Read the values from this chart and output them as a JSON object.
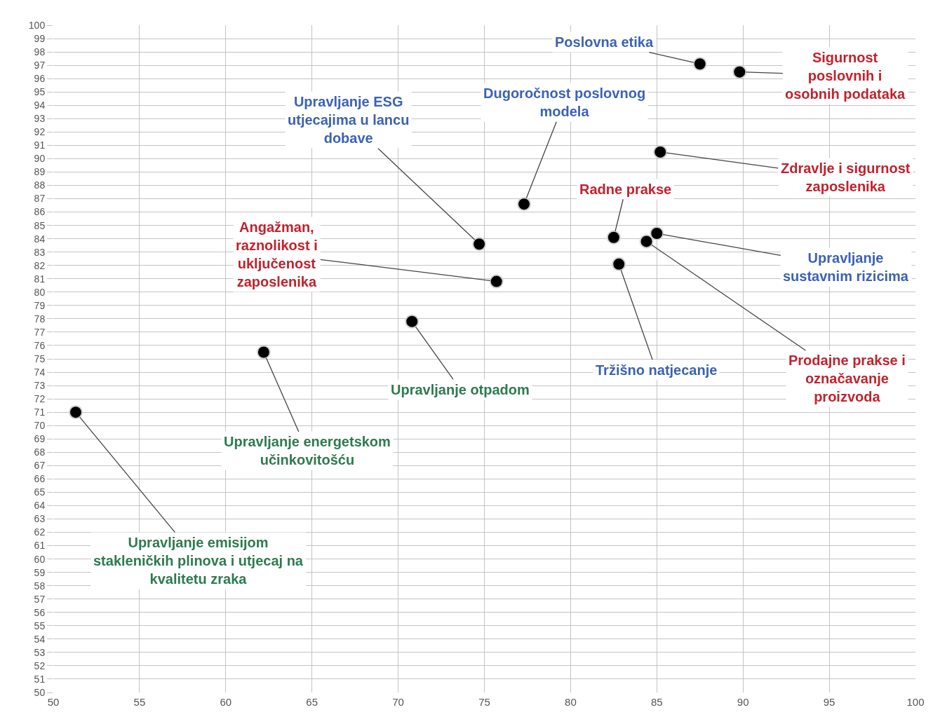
{
  "chart_data": {
    "type": "scatter",
    "marker": "circle",
    "grid": true,
    "xlim": [
      50,
      100
    ],
    "xticks": [
      50,
      55,
      60,
      65,
      70,
      75,
      80,
      85,
      90,
      95,
      100
    ],
    "ylim": [
      50,
      100
    ],
    "yticks": [
      50,
      51,
      52,
      53,
      54,
      55,
      56,
      57,
      58,
      59,
      60,
      61,
      62,
      63,
      64,
      65,
      66,
      67,
      68,
      69,
      70,
      71,
      72,
      73,
      74,
      75,
      76,
      77,
      78,
      79,
      80,
      81,
      82,
      83,
      84,
      85,
      86,
      87,
      88,
      89,
      90,
      91,
      92,
      93,
      94,
      95,
      96,
      97,
      98,
      99,
      100
    ],
    "series": [
      {
        "color": "#000000",
        "x": [
          87.5,
          89.8,
          85.2,
          77.3,
          74.7,
          82.5,
          75.7,
          85.0,
          82.8,
          84.4,
          70.8,
          62.2,
          51.3
        ],
        "values": [
          97.1,
          96.5,
          90.5,
          86.6,
          83.6,
          84.1,
          80.8,
          84.4,
          82.1,
          83.8,
          77.8,
          75.5,
          71.0
        ]
      }
    ],
    "annotations": [
      {
        "text": "Poslovna etika",
        "x": 87.5,
        "y": 97.1
      },
      {
        "text": "Sigurnost\nposlovnih i\nosobnih podataka",
        "x": 89.8,
        "y": 96.5
      },
      {
        "text": "Zdravlje i sigurnost\nzaposlenika",
        "x": 85.2,
        "y": 90.5
      },
      {
        "text": "Dugoročnost poslovnog\nmodela",
        "x": 77.3,
        "y": 86.6
      },
      {
        "text": "Upravljanje ESG\nutjecajima u lancu\ndobave",
        "x": 74.7,
        "y": 83.6
      },
      {
        "text": "Radne prakse",
        "x": 82.5,
        "y": 84.1
      },
      {
        "text": "Angažman,\nraznolikost i\nuključenost\nzaposlenika",
        "x": 75.7,
        "y": 80.8
      },
      {
        "text": "Upravljanje\nsustavnim rizicima",
        "x": 85.0,
        "y": 84.4
      },
      {
        "text": "Tržišno natjecanje",
        "x": 82.8,
        "y": 82.1
      },
      {
        "text": "Prodajne prakse i\noznačavanje\nproizvoda",
        "x": 84.4,
        "y": 83.8
      },
      {
        "text": "Upravljanje otpadom",
        "x": 70.8,
        "y": 77.8
      },
      {
        "text": "Upravljanje energetskom\nučinkovitošću",
        "x": 62.2,
        "y": 75.5
      },
      {
        "text": "Upravljanje emisijom\nstakleničkih plinova i utjecaj na\nkvalitetu zraka",
        "x": 51.3,
        "y": 71.0
      }
    ]
  }
}
